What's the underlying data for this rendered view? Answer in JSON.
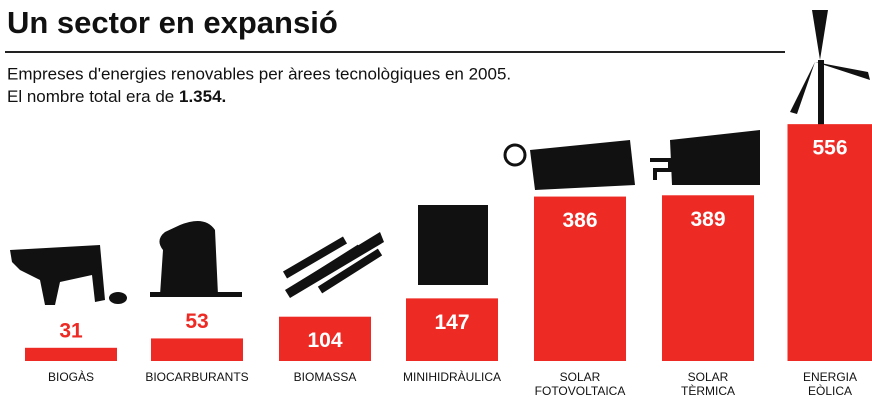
{
  "chart_data": {
    "type": "bar",
    "title": "Un sector en expansió",
    "subtitle": [
      "Empreses d'energies renovables per àrees tecnològiques en 2005.",
      "El nombre total era de"
    ],
    "total": "1.354.",
    "categories": [
      "BIOGÀS",
      "BIOCARBURANTS",
      "BIOMASSA",
      "MINIHIDRÀULICA",
      "SOLAR FOTOVOLTAICA",
      "SOLAR TÈRMICA",
      "ENERGIA EÒLICA"
    ],
    "values": [
      31,
      53,
      104,
      147,
      386,
      389,
      556
    ],
    "color": "#ee2a24"
  }
}
